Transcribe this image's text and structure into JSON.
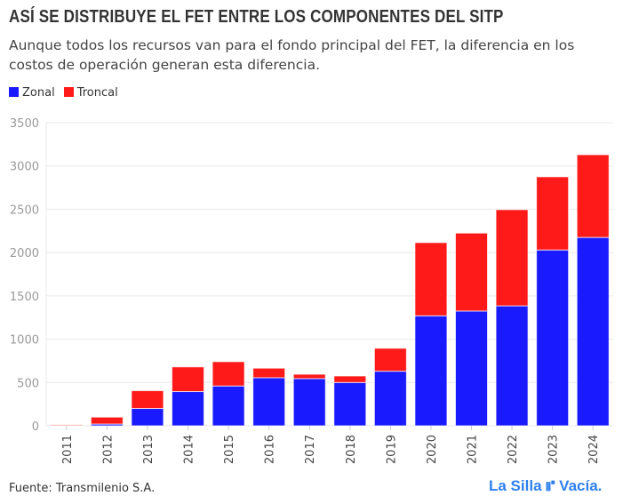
{
  "title": "ASÍ SE DISTRIBUYE EL FET ENTRE LOS COMPONENTES DEL SITP",
  "subtitle": "Aunque todos los recursos van para el fondo principal del FET, la diferencia en los costos de operación generan esta diferencia.",
  "source": "Fuente: Transmilenio S.A.",
  "logo": "La Silla Vacía.",
  "chart_data": {
    "type": "bar",
    "stacked": true,
    "categories": [
      "2011",
      "2012",
      "2013",
      "2014",
      "2015",
      "2016",
      "2017",
      "2018",
      "2019",
      "2020",
      "2021",
      "2022",
      "2023",
      "2024"
    ],
    "series": [
      {
        "name": "Zonal",
        "color": "#1a1aff",
        "values": [
          2,
          20,
          200,
          395,
          460,
          555,
          545,
          500,
          630,
          1270,
          1325,
          1385,
          2030,
          2175
        ]
      },
      {
        "name": "Troncal",
        "color": "#ff1a1a",
        "values": [
          10,
          80,
          205,
          285,
          280,
          110,
          50,
          75,
          265,
          845,
          900,
          1110,
          845,
          955
        ]
      }
    ],
    "ylim": [
      0,
      3500
    ],
    "yticks": [
      0,
      500,
      1000,
      1500,
      2000,
      2500,
      3000,
      3500
    ],
    "grid": true,
    "legend": "top-left"
  }
}
